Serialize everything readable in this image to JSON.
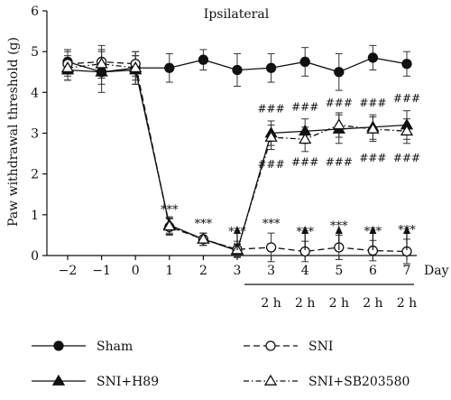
{
  "chart_data": {
    "type": "line",
    "title": "Ipsilateral",
    "ylabel": "Paw withdrawal threshold (g)",
    "xlabel": "Day",
    "ylim": [
      0,
      6
    ],
    "yticks": [
      0,
      1,
      2,
      3,
      4,
      5,
      6
    ],
    "x_labels": [
      "−2",
      "−1",
      "0",
      "1",
      "2",
      "3",
      "3",
      "4",
      "5",
      "6",
      "7"
    ],
    "sublabels": [
      "",
      "",
      "",
      "",
      "",
      "",
      "2 h",
      "2 h",
      "2 h",
      "2 h",
      "2 h"
    ],
    "series": [
      {
        "name": "Sham",
        "marker": "circle-filled",
        "dash": "solid",
        "values": [
          4.75,
          4.5,
          4.6,
          4.6,
          4.8,
          4.55,
          4.6,
          4.75,
          4.5,
          4.85,
          4.7
        ],
        "errors": [
          0.3,
          0.5,
          0.4,
          0.35,
          0.25,
          0.4,
          0.35,
          0.35,
          0.45,
          0.3,
          0.3
        ]
      },
      {
        "name": "SNI",
        "marker": "circle-open",
        "dash": "dashed",
        "values": [
          4.7,
          4.75,
          4.7,
          0.7,
          0.4,
          0.15,
          0.2,
          0.1,
          0.2,
          0.12,
          0.1
        ],
        "errors": [
          0.3,
          0.4,
          0.3,
          0.2,
          0.15,
          0.2,
          0.35,
          0.25,
          0.3,
          0.25,
          0.3
        ]
      },
      {
        "name": "SNI+H89",
        "marker": "triangle-filled",
        "dash": "solid",
        "values": [
          4.55,
          4.5,
          4.55,
          0.75,
          0.4,
          0.12,
          3.0,
          3.05,
          3.1,
          3.15,
          3.2
        ],
        "errors": [
          0.25,
          0.3,
          0.35,
          0.2,
          0.15,
          0.15,
          0.3,
          0.3,
          0.35,
          0.3,
          0.35
        ]
      },
      {
        "name": "SNI+SB203580",
        "marker": "triangle-open",
        "dash": "dashdot",
        "values": [
          4.6,
          4.7,
          4.6,
          0.72,
          0.4,
          0.14,
          2.9,
          2.85,
          3.2,
          3.1,
          3.05
        ],
        "errors": [
          0.3,
          0.35,
          0.3,
          0.2,
          0.15,
          0.15,
          0.3,
          0.3,
          0.3,
          0.3,
          0.3
        ]
      }
    ],
    "annotations": {
      "stars": [
        {
          "x_index": 3,
          "text": "***"
        },
        {
          "x_index": 4,
          "text": "***"
        },
        {
          "x_index": 5,
          "text": "***"
        },
        {
          "x_index": 6,
          "text": "***"
        },
        {
          "x_index": 7,
          "text": "***"
        },
        {
          "x_index": 8,
          "text": "***"
        },
        {
          "x_index": 9,
          "text": "***"
        },
        {
          "x_index": 10,
          "text": "***"
        }
      ],
      "hash_upper": "###",
      "hash_lower": "###",
      "hash_indices": [
        6,
        7,
        8,
        9,
        10
      ],
      "arrow_indices": [
        5,
        7,
        8,
        9,
        10
      ]
    },
    "legend": "bottom"
  }
}
